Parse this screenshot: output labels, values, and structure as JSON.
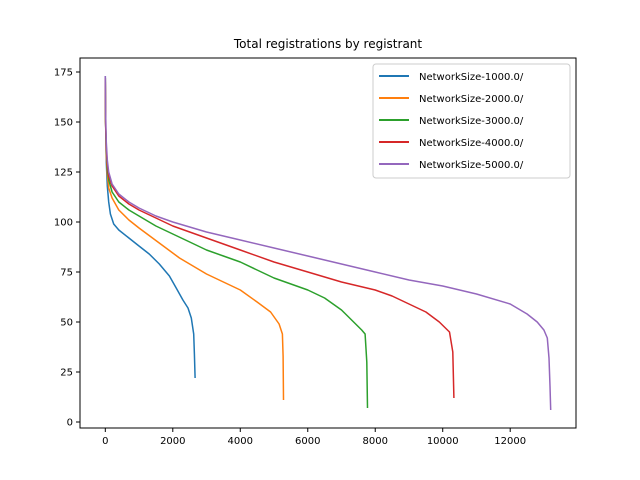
{
  "chart_data": {
    "type": "line",
    "title": "Total registrations by registrant",
    "xlabel": "",
    "ylabel": "",
    "xlim": [
      -750,
      13950
    ],
    "ylim": [
      -3,
      182
    ],
    "xticks": [
      0,
      2000,
      4000,
      6000,
      8000,
      10000,
      12000
    ],
    "xtick_labels": [
      "0",
      "2000",
      "4000",
      "6000",
      "8000",
      "10000",
      "12000"
    ],
    "yticks": [
      0,
      25,
      50,
      75,
      100,
      125,
      150,
      175
    ],
    "ytick_labels": [
      "0",
      "25",
      "50",
      "75",
      "100",
      "125",
      "150",
      "175"
    ],
    "grid": false,
    "legend_position": "top-right",
    "series": [
      {
        "name": "NetworkSize-1000.0/",
        "color": "#1f77b4",
        "points": [
          [
            0,
            173
          ],
          [
            10,
            150
          ],
          [
            30,
            130
          ],
          [
            60,
            118
          ],
          [
            100,
            110
          ],
          [
            150,
            104
          ],
          [
            250,
            99
          ],
          [
            400,
            96
          ],
          [
            700,
            92
          ],
          [
            1000,
            88
          ],
          [
            1300,
            84
          ],
          [
            1600,
            79
          ],
          [
            1900,
            73
          ],
          [
            2100,
            67
          ],
          [
            2300,
            61
          ],
          [
            2450,
            57
          ],
          [
            2550,
            52
          ],
          [
            2620,
            44
          ],
          [
            2640,
            34
          ],
          [
            2660,
            22
          ]
        ]
      },
      {
        "name": "NetworkSize-2000.0/",
        "color": "#ff7f0e",
        "points": [
          [
            0,
            170
          ],
          [
            10,
            150
          ],
          [
            30,
            133
          ],
          [
            60,
            124
          ],
          [
            100,
            117
          ],
          [
            200,
            112
          ],
          [
            400,
            106
          ],
          [
            700,
            101
          ],
          [
            1000,
            97
          ],
          [
            1400,
            92
          ],
          [
            1800,
            87
          ],
          [
            2200,
            82
          ],
          [
            2600,
            78
          ],
          [
            3000,
            74
          ],
          [
            3500,
            70
          ],
          [
            4000,
            66
          ],
          [
            4500,
            60
          ],
          [
            4900,
            55
          ],
          [
            5150,
            49
          ],
          [
            5250,
            44
          ],
          [
            5270,
            33
          ],
          [
            5280,
            11
          ]
        ]
      },
      {
        "name": "NetworkSize-3000.0/",
        "color": "#2ca02c",
        "points": [
          [
            0,
            172
          ],
          [
            10,
            150
          ],
          [
            30,
            136
          ],
          [
            60,
            127
          ],
          [
            100,
            121
          ],
          [
            200,
            115
          ],
          [
            400,
            110
          ],
          [
            700,
            106
          ],
          [
            1000,
            103
          ],
          [
            1500,
            98
          ],
          [
            2000,
            94
          ],
          [
            2500,
            90
          ],
          [
            3000,
            86
          ],
          [
            3500,
            83
          ],
          [
            4000,
            80
          ],
          [
            4500,
            76
          ],
          [
            5000,
            72
          ],
          [
            5500,
            69
          ],
          [
            6000,
            66
          ],
          [
            6500,
            62
          ],
          [
            7000,
            56
          ],
          [
            7300,
            51
          ],
          [
            7600,
            46
          ],
          [
            7700,
            44
          ],
          [
            7750,
            30
          ],
          [
            7770,
            7
          ]
        ]
      },
      {
        "name": "NetworkSize-4000.0/",
        "color": "#d62728",
        "points": [
          [
            0,
            172
          ],
          [
            10,
            150
          ],
          [
            30,
            137
          ],
          [
            60,
            129
          ],
          [
            100,
            123
          ],
          [
            200,
            118
          ],
          [
            400,
            113
          ],
          [
            700,
            109
          ],
          [
            1000,
            106
          ],
          [
            1500,
            102
          ],
          [
            2000,
            98
          ],
          [
            3000,
            92
          ],
          [
            4000,
            86
          ],
          [
            5000,
            80
          ],
          [
            6000,
            75
          ],
          [
            7000,
            70
          ],
          [
            8000,
            66
          ],
          [
            8500,
            63
          ],
          [
            9000,
            59
          ],
          [
            9500,
            55
          ],
          [
            9900,
            50
          ],
          [
            10200,
            45
          ],
          [
            10300,
            35
          ],
          [
            10330,
            12
          ]
        ]
      },
      {
        "name": "NetworkSize-5000.0/",
        "color": "#9467bd",
        "points": [
          [
            0,
            173
          ],
          [
            10,
            155
          ],
          [
            30,
            140
          ],
          [
            60,
            131
          ],
          [
            100,
            125
          ],
          [
            200,
            119
          ],
          [
            400,
            114
          ],
          [
            700,
            110
          ],
          [
            1000,
            107
          ],
          [
            1500,
            103
          ],
          [
            2000,
            100
          ],
          [
            3000,
            95
          ],
          [
            4000,
            91
          ],
          [
            5000,
            87
          ],
          [
            6000,
            83
          ],
          [
            7000,
            79
          ],
          [
            8000,
            75
          ],
          [
            9000,
            71
          ],
          [
            10000,
            68
          ],
          [
            11000,
            64
          ],
          [
            12000,
            59
          ],
          [
            12500,
            54
          ],
          [
            12800,
            50
          ],
          [
            13000,
            46
          ],
          [
            13100,
            42
          ],
          [
            13150,
            32
          ],
          [
            13180,
            18
          ],
          [
            13200,
            6
          ]
        ]
      }
    ]
  }
}
